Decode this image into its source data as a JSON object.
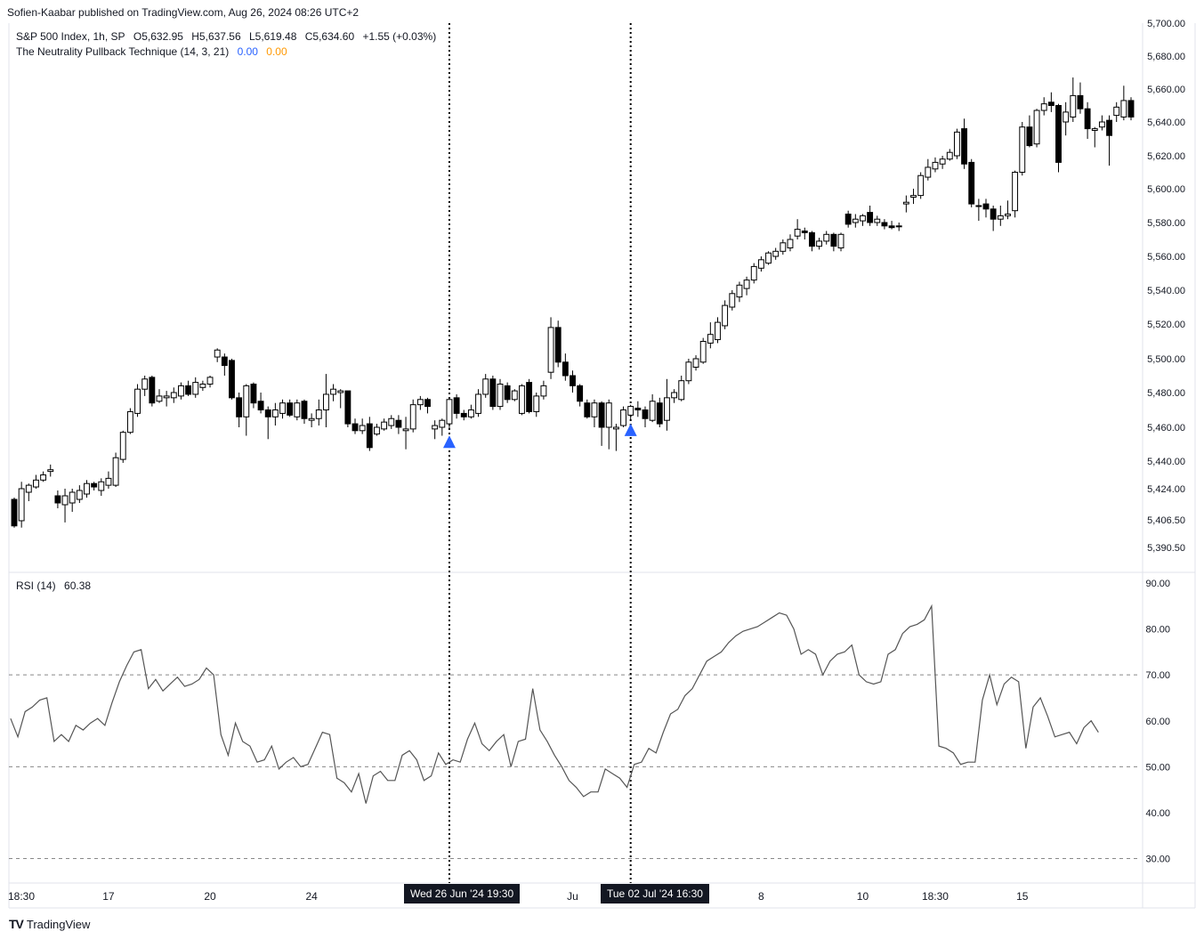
{
  "publisher": "Sofien-Kaabar published on TradingView.com, Aug 26, 2024 08:26 UTC+2",
  "legend": {
    "symbol": "S&P 500 Index, 1h, SP",
    "open": "O5,632.95",
    "high": "H5,637.56",
    "low": "L5,619.48",
    "close": "C5,634.60",
    "change": "+1.55 (+0.03%)",
    "indicator": "The Neutrality Pullback Technique (14, 3, 21)",
    "ind_v1": "0.00",
    "ind_v2": "0.00",
    "rsi_label": "RSI (14)",
    "rsi_value": "60.38"
  },
  "date_badges": [
    "Wed 26 Jun '24   19:30",
    "Tue 02 Jul '24   16:30"
  ],
  "footer": {
    "logo": "TV",
    "brand": "TradingView"
  },
  "colors": {
    "up_body": "#ffffff",
    "down_body": "#000000",
    "wick": "#000000",
    "signal": "#2962ff",
    "rsi_line": "#555555",
    "grid_dash": "#888888"
  },
  "chart_data": {
    "type": "candlestick",
    "title": "S&P 500 Index, 1h, SP",
    "price_axis": {
      "ticks": [
        5390.5,
        5406.5,
        5424.0,
        5440.0,
        5460.0,
        5480.0,
        5500.0,
        5520.0,
        5540.0,
        5560.0,
        5580.0,
        5600.0,
        5620.0,
        5640.0,
        5660.0,
        5680.0,
        5700.0
      ],
      "tick_labels": [
        "5,390.50",
        "5,406.50",
        "5,424.00",
        "5,440.00",
        "5,460.00",
        "5,480.00",
        "5,500.00",
        "5,520.00",
        "5,540.00",
        "5,560.00",
        "5,580.00",
        "5,600.00",
        "5,620.00",
        "5,640.00",
        "5,660.00",
        "5,680.00",
        "5,700.00"
      ]
    },
    "rsi_axis": {
      "ticks": [
        30,
        40,
        50,
        60,
        70,
        80,
        90
      ],
      "tick_labels": [
        "30.00",
        "40.00",
        "50.00",
        "60.00",
        "70.00",
        "80.00",
        "90.00"
      ],
      "levels": [
        30,
        50,
        70
      ]
    },
    "x_labels": [
      {
        "label": "18:30",
        "index": 0
      },
      {
        "label": "17",
        "index": 13
      },
      {
        "label": "20",
        "index": 27
      },
      {
        "label": "24",
        "index": 41
      },
      {
        "label": "Ju",
        "index": 77
      },
      {
        "label": "8",
        "index": 103
      },
      {
        "label": "10",
        "index": 117
      },
      {
        "label": "18:30",
        "index": 127
      },
      {
        "label": "15",
        "index": 139
      }
    ],
    "signals": [
      {
        "index": 60,
        "type": "bullish",
        "price": 5452
      },
      {
        "index": 85,
        "type": "bullish",
        "price": 5459
      }
    ],
    "candles": [
      {
        "o": 5418,
        "h": 5419,
        "l": 5402,
        "c": 5403
      },
      {
        "o": 5406,
        "h": 5428,
        "l": 5402,
        "c": 5424
      },
      {
        "o": 5422,
        "h": 5427,
        "l": 5417,
        "c": 5426
      },
      {
        "o": 5425,
        "h": 5432,
        "l": 5424,
        "c": 5429
      },
      {
        "o": 5429,
        "h": 5434,
        "l": 5428,
        "c": 5432
      },
      {
        "o": 5434,
        "h": 5438,
        "l": 5431,
        "c": 5435
      },
      {
        "o": 5420,
        "h": 5423,
        "l": 5413,
        "c": 5416
      },
      {
        "o": 5415,
        "h": 5424,
        "l": 5405,
        "c": 5420
      },
      {
        "o": 5416,
        "h": 5424,
        "l": 5411,
        "c": 5422
      },
      {
        "o": 5418,
        "h": 5426,
        "l": 5416,
        "c": 5423
      },
      {
        "o": 5421,
        "h": 5429,
        "l": 5419,
        "c": 5427
      },
      {
        "o": 5427,
        "h": 5428,
        "l": 5423,
        "c": 5425
      },
      {
        "o": 5423,
        "h": 5430,
        "l": 5420,
        "c": 5428
      },
      {
        "o": 5426,
        "h": 5434,
        "l": 5424,
        "c": 5430
      },
      {
        "o": 5426,
        "h": 5445,
        "l": 5425,
        "c": 5442
      },
      {
        "o": 5441,
        "h": 5458,
        "l": 5439,
        "c": 5457
      },
      {
        "o": 5457,
        "h": 5471,
        "l": 5456,
        "c": 5469
      },
      {
        "o": 5468,
        "h": 5485,
        "l": 5466,
        "c": 5482
      },
      {
        "o": 5482,
        "h": 5490,
        "l": 5478,
        "c": 5488
      },
      {
        "o": 5489,
        "h": 5490,
        "l": 5472,
        "c": 5474
      },
      {
        "o": 5475,
        "h": 5482,
        "l": 5474,
        "c": 5478
      },
      {
        "o": 5477,
        "h": 5481,
        "l": 5472,
        "c": 5478
      },
      {
        "o": 5477,
        "h": 5483,
        "l": 5474,
        "c": 5480
      },
      {
        "o": 5478,
        "h": 5486,
        "l": 5476,
        "c": 5484
      },
      {
        "o": 5484,
        "h": 5487,
        "l": 5478,
        "c": 5479
      },
      {
        "o": 5479,
        "h": 5489,
        "l": 5477,
        "c": 5486
      },
      {
        "o": 5483,
        "h": 5487,
        "l": 5481,
        "c": 5485
      },
      {
        "o": 5485,
        "h": 5490,
        "l": 5483,
        "c": 5489
      },
      {
        "o": 5501,
        "h": 5506,
        "l": 5498,
        "c": 5505
      },
      {
        "o": 5501,
        "h": 5503,
        "l": 5490,
        "c": 5496
      },
      {
        "o": 5499,
        "h": 5500,
        "l": 5476,
        "c": 5477
      },
      {
        "o": 5477,
        "h": 5480,
        "l": 5460,
        "c": 5466
      },
      {
        "o": 5466,
        "h": 5485,
        "l": 5455,
        "c": 5484
      },
      {
        "o": 5485,
        "h": 5486,
        "l": 5471,
        "c": 5474
      },
      {
        "o": 5475,
        "h": 5480,
        "l": 5468,
        "c": 5470
      },
      {
        "o": 5470,
        "h": 5472,
        "l": 5453,
        "c": 5466
      },
      {
        "o": 5466,
        "h": 5474,
        "l": 5461,
        "c": 5470
      },
      {
        "o": 5468,
        "h": 5476,
        "l": 5465,
        "c": 5474
      },
      {
        "o": 5474,
        "h": 5476,
        "l": 5466,
        "c": 5467
      },
      {
        "o": 5466,
        "h": 5476,
        "l": 5464,
        "c": 5474
      },
      {
        "o": 5475,
        "h": 5476,
        "l": 5462,
        "c": 5465
      },
      {
        "o": 5464,
        "h": 5468,
        "l": 5460,
        "c": 5465
      },
      {
        "o": 5465,
        "h": 5476,
        "l": 5461,
        "c": 5470
      },
      {
        "o": 5470,
        "h": 5491,
        "l": 5460,
        "c": 5479
      },
      {
        "o": 5479,
        "h": 5485,
        "l": 5475,
        "c": 5482
      },
      {
        "o": 5480,
        "h": 5482,
        "l": 5471,
        "c": 5481
      },
      {
        "o": 5481,
        "h": 5481,
        "l": 5460,
        "c": 5462
      },
      {
        "o": 5462,
        "h": 5465,
        "l": 5456,
        "c": 5458
      },
      {
        "o": 5458,
        "h": 5465,
        "l": 5456,
        "c": 5461
      },
      {
        "o": 5462,
        "h": 5466,
        "l": 5446,
        "c": 5448
      },
      {
        "o": 5456,
        "h": 5462,
        "l": 5455,
        "c": 5460
      },
      {
        "o": 5459,
        "h": 5465,
        "l": 5458,
        "c": 5463
      },
      {
        "o": 5461,
        "h": 5467,
        "l": 5459,
        "c": 5465
      },
      {
        "o": 5464,
        "h": 5467,
        "l": 5456,
        "c": 5460
      },
      {
        "o": 5458,
        "h": 5466,
        "l": 5447,
        "c": 5459
      },
      {
        "o": 5459,
        "h": 5476,
        "l": 5457,
        "c": 5473
      },
      {
        "o": 5473,
        "h": 5478,
        "l": 5470,
        "c": 5476
      },
      {
        "o": 5476,
        "h": 5477,
        "l": 5468,
        "c": 5472
      },
      {
        "o": 5459,
        "h": 5464,
        "l": 5453,
        "c": 5461
      },
      {
        "o": 5460,
        "h": 5465,
        "l": 5455,
        "c": 5464
      },
      {
        "o": 5462,
        "h": 5477,
        "l": 5459,
        "c": 5476
      },
      {
        "o": 5477,
        "h": 5479,
        "l": 5465,
        "c": 5468
      },
      {
        "o": 5468,
        "h": 5470,
        "l": 5464,
        "c": 5466
      },
      {
        "o": 5466,
        "h": 5473,
        "l": 5465,
        "c": 5470
      },
      {
        "o": 5468,
        "h": 5482,
        "l": 5466,
        "c": 5479
      },
      {
        "o": 5479,
        "h": 5491,
        "l": 5477,
        "c": 5488
      },
      {
        "o": 5488,
        "h": 5490,
        "l": 5470,
        "c": 5472
      },
      {
        "o": 5472,
        "h": 5488,
        "l": 5470,
        "c": 5485
      },
      {
        "o": 5484,
        "h": 5486,
        "l": 5474,
        "c": 5476
      },
      {
        "o": 5476,
        "h": 5482,
        "l": 5475,
        "c": 5481
      },
      {
        "o": 5468,
        "h": 5485,
        "l": 5467,
        "c": 5484
      },
      {
        "o": 5486,
        "h": 5488,
        "l": 5468,
        "c": 5469
      },
      {
        "o": 5469,
        "h": 5480,
        "l": 5466,
        "c": 5478
      },
      {
        "o": 5478,
        "h": 5487,
        "l": 5476,
        "c": 5484
      },
      {
        "o": 5492,
        "h": 5524,
        "l": 5488,
        "c": 5518
      },
      {
        "o": 5518,
        "h": 5522,
        "l": 5495,
        "c": 5498
      },
      {
        "o": 5498,
        "h": 5503,
        "l": 5487,
        "c": 5490
      },
      {
        "o": 5490,
        "h": 5493,
        "l": 5480,
        "c": 5484
      },
      {
        "o": 5484,
        "h": 5485,
        "l": 5472,
        "c": 5475
      },
      {
        "o": 5474,
        "h": 5476,
        "l": 5465,
        "c": 5466
      },
      {
        "o": 5466,
        "h": 5476,
        "l": 5460,
        "c": 5474
      },
      {
        "o": 5474,
        "h": 5475,
        "l": 5449,
        "c": 5460
      },
      {
        "o": 5460,
        "h": 5476,
        "l": 5447,
        "c": 5474
      },
      {
        "o": 5459,
        "h": 5462,
        "l": 5446,
        "c": 5460
      },
      {
        "o": 5461,
        "h": 5472,
        "l": 5460,
        "c": 5470
      },
      {
        "o": 5467,
        "h": 5473,
        "l": 5464,
        "c": 5472
      },
      {
        "o": 5471,
        "h": 5475,
        "l": 5466,
        "c": 5470
      },
      {
        "o": 5470,
        "h": 5472,
        "l": 5460,
        "c": 5465
      },
      {
        "o": 5464,
        "h": 5479,
        "l": 5463,
        "c": 5475
      },
      {
        "o": 5474,
        "h": 5477,
        "l": 5460,
        "c": 5462
      },
      {
        "o": 5464,
        "h": 5488,
        "l": 5458,
        "c": 5477
      },
      {
        "o": 5477,
        "h": 5482,
        "l": 5474,
        "c": 5480
      },
      {
        "o": 5476,
        "h": 5490,
        "l": 5475,
        "c": 5487
      },
      {
        "o": 5487,
        "h": 5500,
        "l": 5485,
        "c": 5498
      },
      {
        "o": 5495,
        "h": 5502,
        "l": 5493,
        "c": 5500
      },
      {
        "o": 5498,
        "h": 5512,
        "l": 5497,
        "c": 5510
      },
      {
        "o": 5509,
        "h": 5521,
        "l": 5506,
        "c": 5514
      },
      {
        "o": 5511,
        "h": 5524,
        "l": 5509,
        "c": 5521
      },
      {
        "o": 5519,
        "h": 5534,
        "l": 5517,
        "c": 5531
      },
      {
        "o": 5530,
        "h": 5540,
        "l": 5528,
        "c": 5538
      },
      {
        "o": 5536,
        "h": 5545,
        "l": 5533,
        "c": 5543
      },
      {
        "o": 5541,
        "h": 5548,
        "l": 5537,
        "c": 5546
      },
      {
        "o": 5546,
        "h": 5556,
        "l": 5544,
        "c": 5554
      },
      {
        "o": 5553,
        "h": 5560,
        "l": 5551,
        "c": 5558
      },
      {
        "o": 5556,
        "h": 5563,
        "l": 5555,
        "c": 5562
      },
      {
        "o": 5560,
        "h": 5565,
        "l": 5558,
        "c": 5563
      },
      {
        "o": 5563,
        "h": 5570,
        "l": 5561,
        "c": 5568
      },
      {
        "o": 5565,
        "h": 5573,
        "l": 5563,
        "c": 5570
      },
      {
        "o": 5572,
        "h": 5582,
        "l": 5570,
        "c": 5576
      },
      {
        "o": 5575,
        "h": 5577,
        "l": 5570,
        "c": 5574
      },
      {
        "o": 5574,
        "h": 5575,
        "l": 5563,
        "c": 5566
      },
      {
        "o": 5566,
        "h": 5571,
        "l": 5564,
        "c": 5569
      },
      {
        "o": 5569,
        "h": 5575,
        "l": 5567,
        "c": 5573
      },
      {
        "o": 5573,
        "h": 5574,
        "l": 5563,
        "c": 5566
      },
      {
        "o": 5565,
        "h": 5574,
        "l": 5563,
        "c": 5573
      },
      {
        "o": 5585,
        "h": 5587,
        "l": 5577,
        "c": 5579
      },
      {
        "o": 5580,
        "h": 5585,
        "l": 5577,
        "c": 5582
      },
      {
        "o": 5581,
        "h": 5585,
        "l": 5578,
        "c": 5584
      },
      {
        "o": 5586,
        "h": 5590,
        "l": 5578,
        "c": 5580
      },
      {
        "o": 5580,
        "h": 5584,
        "l": 5578,
        "c": 5582
      },
      {
        "o": 5580,
        "h": 5582,
        "l": 5576,
        "c": 5578
      },
      {
        "o": 5578,
        "h": 5581,
        "l": 5576,
        "c": 5577
      },
      {
        "o": 5578,
        "h": 5580,
        "l": 5575,
        "c": 5578
      },
      {
        "o": 5591,
        "h": 5596,
        "l": 5586,
        "c": 5592
      },
      {
        "o": 5595,
        "h": 5600,
        "l": 5591,
        "c": 5596
      },
      {
        "o": 5596,
        "h": 5610,
        "l": 5594,
        "c": 5608
      },
      {
        "o": 5607,
        "h": 5618,
        "l": 5605,
        "c": 5613
      },
      {
        "o": 5612,
        "h": 5619,
        "l": 5610,
        "c": 5616
      },
      {
        "o": 5615,
        "h": 5620,
        "l": 5612,
        "c": 5618
      },
      {
        "o": 5618,
        "h": 5624,
        "l": 5617,
        "c": 5622
      },
      {
        "o": 5620,
        "h": 5636,
        "l": 5618,
        "c": 5634
      },
      {
        "o": 5636,
        "h": 5642,
        "l": 5612,
        "c": 5615
      },
      {
        "o": 5616,
        "h": 5618,
        "l": 5589,
        "c": 5591
      },
      {
        "o": 5590,
        "h": 5594,
        "l": 5581,
        "c": 5590
      },
      {
        "o": 5591,
        "h": 5594,
        "l": 5583,
        "c": 5588
      },
      {
        "o": 5588,
        "h": 5590,
        "l": 5575,
        "c": 5582
      },
      {
        "o": 5582,
        "h": 5590,
        "l": 5578,
        "c": 5584
      },
      {
        "o": 5584,
        "h": 5593,
        "l": 5582,
        "c": 5585
      },
      {
        "o": 5587,
        "h": 5611,
        "l": 5583,
        "c": 5610
      },
      {
        "o": 5610,
        "h": 5640,
        "l": 5608,
        "c": 5637
      },
      {
        "o": 5637,
        "h": 5644,
        "l": 5625,
        "c": 5626
      },
      {
        "o": 5627,
        "h": 5648,
        "l": 5625,
        "c": 5647
      },
      {
        "o": 5647,
        "h": 5655,
        "l": 5644,
        "c": 5651
      },
      {
        "o": 5652,
        "h": 5658,
        "l": 5646,
        "c": 5650
      },
      {
        "o": 5650,
        "h": 5651,
        "l": 5610,
        "c": 5616
      },
      {
        "o": 5640,
        "h": 5652,
        "l": 5632,
        "c": 5646
      },
      {
        "o": 5643,
        "h": 5667,
        "l": 5640,
        "c": 5656
      },
      {
        "o": 5656,
        "h": 5664,
        "l": 5645,
        "c": 5648
      },
      {
        "o": 5648,
        "h": 5652,
        "l": 5630,
        "c": 5636
      },
      {
        "o": 5635,
        "h": 5637,
        "l": 5625,
        "c": 5636
      },
      {
        "o": 5637,
        "h": 5644,
        "l": 5635,
        "c": 5640
      },
      {
        "o": 5641,
        "h": 5644,
        "l": 5614,
        "c": 5632
      },
      {
        "o": 5644,
        "h": 5652,
        "l": 5640,
        "c": 5649
      },
      {
        "o": 5643,
        "h": 5662,
        "l": 5641,
        "c": 5653
      },
      {
        "o": 5653,
        "h": 5655,
        "l": 5641,
        "c": 5643
      }
    ],
    "rsi": [
      60.5,
      56.5,
      62.0,
      63.0,
      64.5,
      65.0,
      55.5,
      57.0,
      55.5,
      59.0,
      58.0,
      59.5,
      60.5,
      59.0,
      64.0,
      68.5,
      72.0,
      75.0,
      75.5,
      67.0,
      69.0,
      66.5,
      68.0,
      69.5,
      67.5,
      68.0,
      69.0,
      71.5,
      70.0,
      57.0,
      52.5,
      59.5,
      55.5,
      54.5,
      51.0,
      51.5,
      54.5,
      49.5,
      51.0,
      52.0,
      50.0,
      50.5,
      54.0,
      57.5,
      57.0,
      47.5,
      46.5,
      44.5,
      48.5,
      42.0,
      48.0,
      49.0,
      47.0,
      47.0,
      52.5,
      53.5,
      51.5,
      47.0,
      48.0,
      53.0,
      50.5,
      51.5,
      51.0,
      56.0,
      59.5,
      55.0,
      53.5,
      55.5,
      57.0,
      50.0,
      55.5,
      56.0,
      67.0,
      58.0,
      55.5,
      52.5,
      50.0,
      47.0,
      45.5,
      43.5,
      44.5,
      44.5,
      49.5,
      48.5,
      47.5,
      45.5,
      50.5,
      51.0,
      54.0,
      53.0,
      57.5,
      61.5,
      62.5,
      65.5,
      67.0,
      70.0,
      73.0,
      74.0,
      75.0,
      77.0,
      78.5,
      79.5,
      80.0,
      80.5,
      81.5,
      82.5,
      83.5,
      83.0,
      80.0,
      74.5,
      75.5,
      74.5,
      70.0,
      73.0,
      74.5,
      75.0,
      76.5,
      70.0,
      68.5,
      68.0,
      68.5,
      74.5,
      75.5,
      79.0,
      80.5,
      81.0,
      82.0,
      85.0,
      54.5,
      54.0,
      53.0,
      50.5,
      51.0,
      51.0,
      64.5,
      70.0,
      63.5,
      68.0,
      69.5,
      68.5,
      54.0,
      63.0,
      65.0,
      61.0,
      56.5,
      57.0,
      57.5,
      55.0,
      58.5,
      60.0,
      57.5
    ]
  }
}
